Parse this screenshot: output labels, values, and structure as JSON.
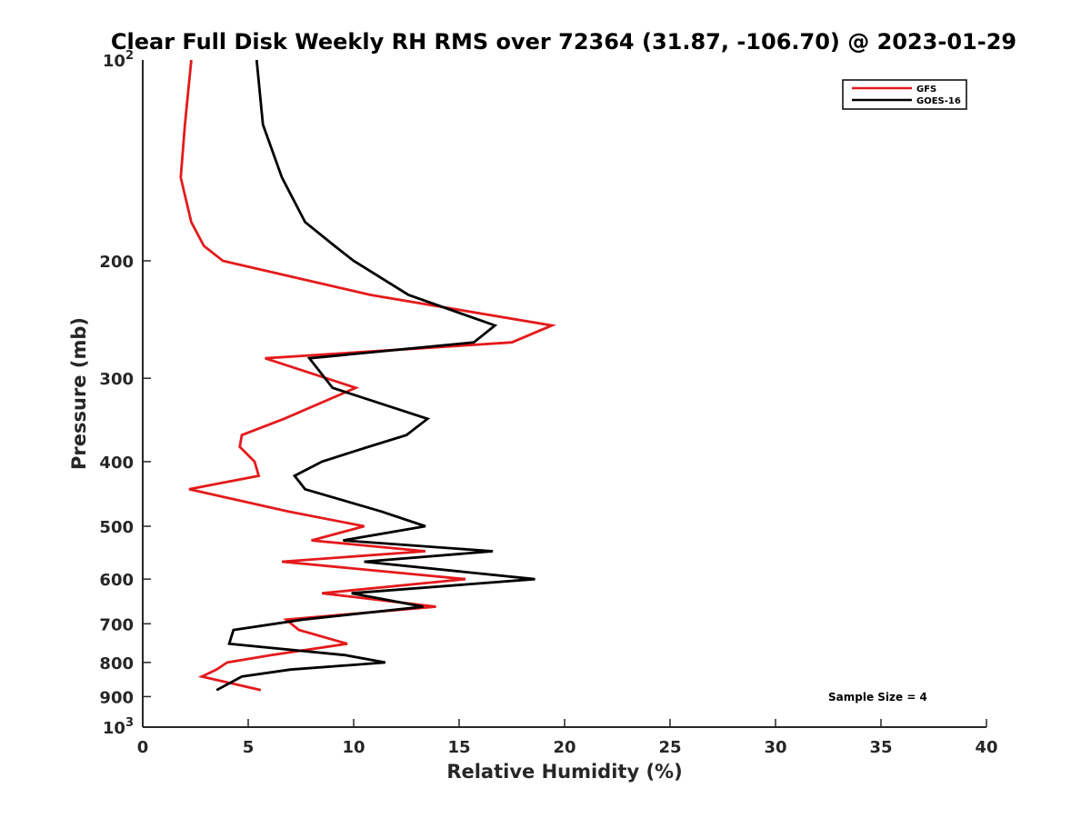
{
  "chart_data": {
    "type": "line",
    "title": "Clear Full Disk Weekly RH RMS over 72364 (31.87, -106.70) @ 2023-01-29",
    "xlabel": "Relative Humidity (%)",
    "ylabel": "Pressure (mb)",
    "xlim": [
      0,
      40
    ],
    "ylim": [
      100,
      1000
    ],
    "yscale": "log",
    "y_reversed": true,
    "grid": false,
    "legend_position": "top-right",
    "x_ticks": [
      "0",
      "5",
      "10",
      "15",
      "20",
      "25",
      "30",
      "35",
      "40"
    ],
    "y_ticks": [
      {
        "value": 100,
        "base": "10",
        "exp": "2"
      },
      {
        "value": 200,
        "label": "200"
      },
      {
        "value": 300,
        "label": "300"
      },
      {
        "value": 400,
        "label": "400"
      },
      {
        "value": 500,
        "label": "500"
      },
      {
        "value": 600,
        "label": "600"
      },
      {
        "value": 700,
        "label": "700"
      },
      {
        "value": 800,
        "label": "800"
      },
      {
        "value": 900,
        "label": "900"
      },
      {
        "value": 1000,
        "base": "10",
        "exp": "3"
      }
    ],
    "series": [
      {
        "name": "GFS",
        "color": "#e41a1c",
        "pressure": [
          100,
          125,
          150,
          175,
          190,
          200,
          225,
          250,
          265,
          280,
          310,
          345,
          365,
          380,
          400,
          420,
          440,
          475,
          500,
          525,
          545,
          565,
          600,
          630,
          660,
          690,
          715,
          750,
          780,
          800,
          820,
          840,
          880
        ],
        "values": [
          2.3,
          2.0,
          1.8,
          2.3,
          2.9,
          3.8,
          10.8,
          19.4,
          17.5,
          5.8,
          10.1,
          6.7,
          4.7,
          4.6,
          5.3,
          5.5,
          2.2,
          6.9,
          10.5,
          8.0,
          13.4,
          6.6,
          15.3,
          8.5,
          13.9,
          6.8,
          7.4,
          9.7,
          6.1,
          4.0,
          3.5,
          2.8,
          5.6
        ]
      },
      {
        "name": "GOES-16",
        "color": "#000000",
        "pressure": [
          100,
          125,
          150,
          175,
          190,
          200,
          225,
          250,
          265,
          280,
          310,
          345,
          365,
          380,
          400,
          420,
          440,
          475,
          500,
          525,
          545,
          565,
          600,
          630,
          660,
          690,
          715,
          750,
          780,
          800,
          820,
          840,
          880
        ],
        "values": [
          5.4,
          5.7,
          6.6,
          7.7,
          9.1,
          10.0,
          12.6,
          16.7,
          15.7,
          7.9,
          9.0,
          13.5,
          12.5,
          10.7,
          8.5,
          7.2,
          7.7,
          11.3,
          13.4,
          9.5,
          16.6,
          10.5,
          18.6,
          9.9,
          13.3,
          7.6,
          4.3,
          4.1,
          9.6,
          11.5,
          7.0,
          4.7,
          3.5
        ]
      }
    ],
    "annotations": [
      {
        "text": "Sample Size = 4",
        "position": "bottom-right"
      }
    ]
  }
}
